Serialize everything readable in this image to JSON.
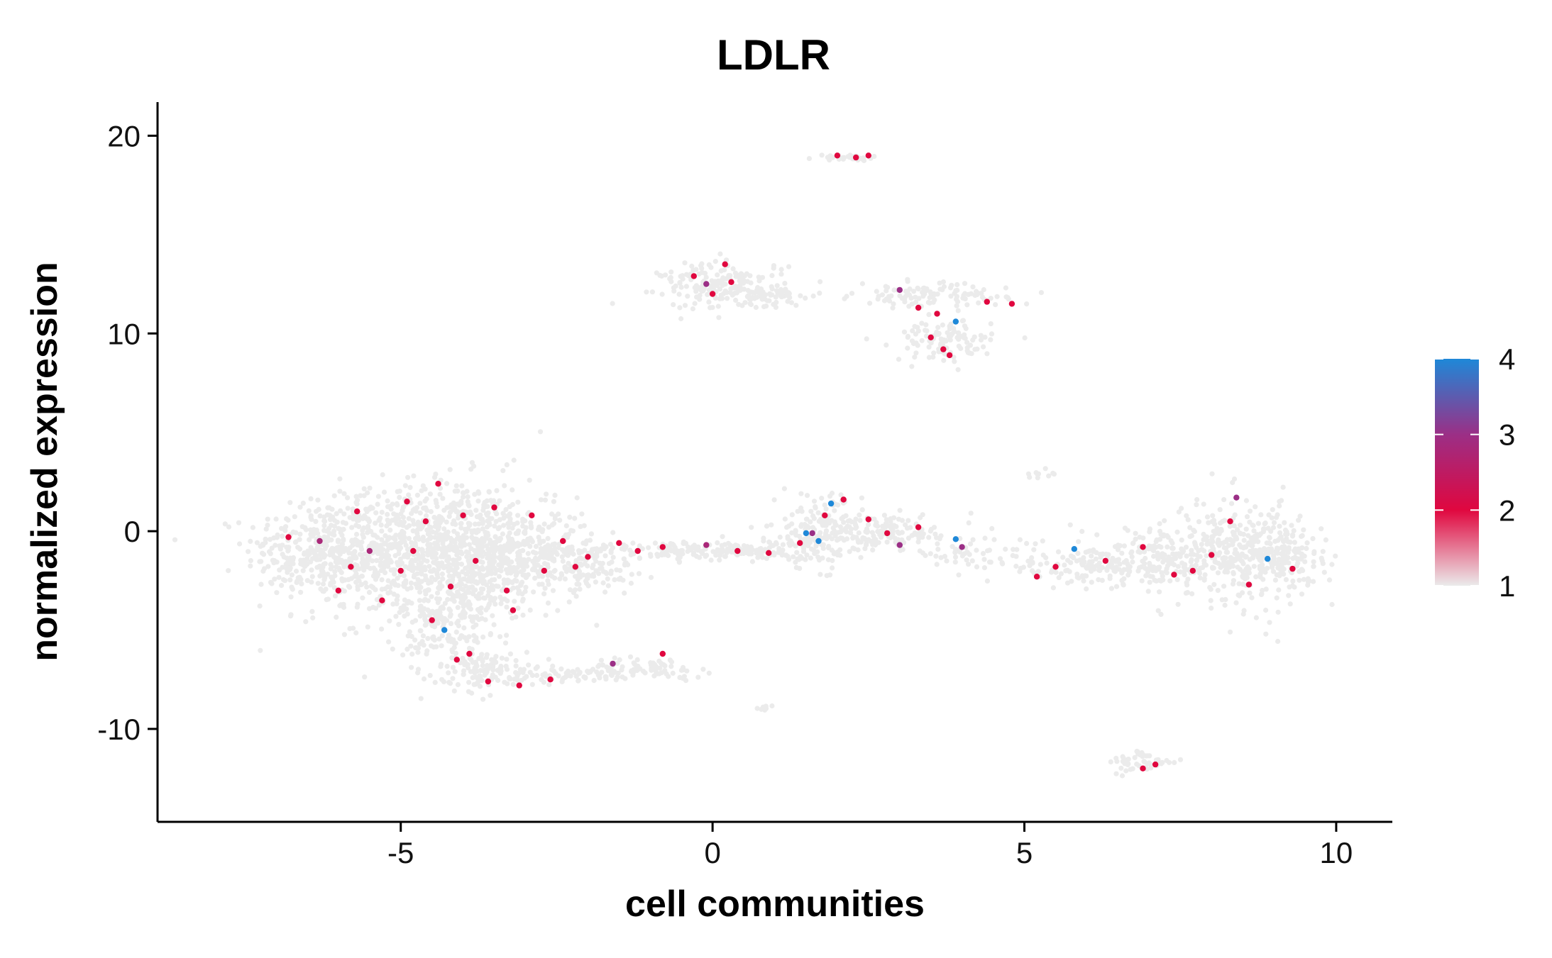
{
  "chart_data": {
    "type": "scatter",
    "title": "LDLR",
    "xlabel": "cell communities",
    "ylabel": "normalized expression",
    "xlim": [
      -8.9,
      10.9
    ],
    "ylim": [
      -14.7,
      21.7
    ],
    "x_ticks": [
      -5,
      0,
      5,
      10
    ],
    "x_tick_labels": [
      "-5",
      "0",
      "5",
      "10"
    ],
    "y_ticks": [
      -10,
      0,
      10,
      20
    ],
    "y_tick_labels": [
      "-10",
      "0",
      "10",
      "20"
    ],
    "grid": false,
    "legend": {
      "position": "right",
      "type": "colorbar",
      "min": 1,
      "max": 4,
      "ticks": [
        1,
        2,
        3,
        4
      ],
      "tick_labels": [
        "1",
        "2",
        "3",
        "4"
      ],
      "color_stops": [
        {
          "value": 1,
          "color": "#ebebeb"
        },
        {
          "value": 2,
          "color": "#e0073f"
        },
        {
          "value": 3,
          "color": "#9b2f86"
        },
        {
          "value": 4,
          "color": "#1e88d8"
        }
      ]
    },
    "background_clusters": [
      {
        "cx": -6.4,
        "cy": -1.0,
        "sx": 0.55,
        "sy": 1.2,
        "n": 260
      },
      {
        "cx": -5.2,
        "cy": -1.2,
        "sx": 0.75,
        "sy": 1.6,
        "n": 520
      },
      {
        "cx": -4.0,
        "cy": -0.8,
        "sx": 0.75,
        "sy": 1.7,
        "n": 620
      },
      {
        "cx": -3.0,
        "cy": -1.3,
        "sx": 0.55,
        "sy": 1.2,
        "n": 300
      },
      {
        "cx": -2.0,
        "cy": -1.9,
        "sx": 0.4,
        "sy": 0.5,
        "n": 90
      },
      {
        "cx": -4.2,
        "cy": -4.8,
        "sx": 0.4,
        "sy": 1.4,
        "n": 180
      },
      {
        "cx": -3.6,
        "cy": -7.0,
        "sx": 0.4,
        "sy": 0.45,
        "n": 110
      },
      {
        "cx": -2.3,
        "cy": -7.3,
        "sx": 0.6,
        "sy": 0.2,
        "n": 70
      },
      {
        "cx": -1.0,
        "cy": -6.9,
        "sx": 0.5,
        "sy": 0.25,
        "n": 70
      },
      {
        "cx": -0.9,
        "cy": -1.0,
        "sx": 0.8,
        "sy": 0.25,
        "n": 110
      },
      {
        "cx": 0.6,
        "cy": -1.0,
        "sx": 0.7,
        "sy": 0.25,
        "n": 110
      },
      {
        "cx": 1.7,
        "cy": 0.0,
        "sx": 0.35,
        "sy": 0.9,
        "n": 170
      },
      {
        "cx": 2.8,
        "cy": -0.1,
        "sx": 0.7,
        "sy": 0.45,
        "n": 140
      },
      {
        "cx": 4.1,
        "cy": -1.2,
        "sx": 0.45,
        "sy": 0.3,
        "n": 40
      },
      {
        "cx": 6.2,
        "cy": -1.8,
        "sx": 0.9,
        "sy": 0.4,
        "n": 170
      },
      {
        "cx": 7.3,
        "cy": -1.3,
        "sx": 0.8,
        "sy": 0.7,
        "n": 190
      },
      {
        "cx": 8.5,
        "cy": -1.0,
        "sx": 0.55,
        "sy": 1.3,
        "n": 330
      },
      {
        "cx": 9.2,
        "cy": -1.4,
        "sx": 0.3,
        "sy": 0.6,
        "n": 110
      },
      {
        "cx": 0.2,
        "cy": 12.4,
        "sx": 0.5,
        "sy": 0.6,
        "n": 190
      },
      {
        "cx": 1.0,
        "cy": 11.9,
        "sx": 0.4,
        "sy": 0.25,
        "n": 40
      },
      {
        "cx": 3.5,
        "cy": 11.9,
        "sx": 0.6,
        "sy": 0.3,
        "n": 110
      },
      {
        "cx": 3.7,
        "cy": 9.6,
        "sx": 0.4,
        "sy": 0.5,
        "n": 110
      },
      {
        "cx": 2.2,
        "cy": 18.9,
        "sx": 0.25,
        "sy": 0.08,
        "n": 40
      },
      {
        "cx": 6.9,
        "cy": -11.7,
        "sx": 0.25,
        "sy": 0.3,
        "n": 50
      },
      {
        "cx": 5.3,
        "cy": 2.8,
        "sx": 0.15,
        "sy": 0.2,
        "n": 10
      },
      {
        "cx": 0.8,
        "cy": -8.9,
        "sx": 0.1,
        "sy": 0.08,
        "n": 8
      }
    ],
    "points": [
      {
        "x": -6.8,
        "y": -0.3,
        "v": 2.0
      },
      {
        "x": -6.3,
        "y": -0.5,
        "v": 2.8
      },
      {
        "x": -5.8,
        "y": -1.8,
        "v": 2.0
      },
      {
        "x": -5.5,
        "y": -1.0,
        "v": 2.8
      },
      {
        "x": -5.3,
        "y": -3.5,
        "v": 2.0
      },
      {
        "x": -5.0,
        "y": -2.0,
        "v": 2.0
      },
      {
        "x": -4.9,
        "y": 1.5,
        "v": 2.0
      },
      {
        "x": -4.6,
        "y": 0.5,
        "v": 2.0
      },
      {
        "x": -4.5,
        "y": -4.5,
        "v": 2.0
      },
      {
        "x": -4.3,
        "y": -5.0,
        "v": 4.0
      },
      {
        "x": -4.2,
        "y": -2.8,
        "v": 2.0
      },
      {
        "x": -4.0,
        "y": 0.8,
        "v": 2.0
      },
      {
        "x": -3.9,
        "y": -6.2,
        "v": 2.0
      },
      {
        "x": -3.6,
        "y": -7.6,
        "v": 2.0
      },
      {
        "x": -3.5,
        "y": 1.2,
        "v": 2.0
      },
      {
        "x": -3.3,
        "y": -3.0,
        "v": 2.0
      },
      {
        "x": -3.1,
        "y": -7.8,
        "v": 2.0
      },
      {
        "x": -2.9,
        "y": 0.8,
        "v": 2.0
      },
      {
        "x": -2.7,
        "y": -2.0,
        "v": 2.0
      },
      {
        "x": -2.2,
        "y": -1.8,
        "v": 2.0
      },
      {
        "x": -2.0,
        "y": -1.3,
        "v": 2.0
      },
      {
        "x": -1.5,
        "y": -0.6,
        "v": 2.0
      },
      {
        "x": -1.2,
        "y": -1.0,
        "v": 2.0
      },
      {
        "x": -0.8,
        "y": -0.8,
        "v": 2.0
      },
      {
        "x": -0.1,
        "y": -0.7,
        "v": 2.8
      },
      {
        "x": 0.4,
        "y": -1.0,
        "v": 2.0
      },
      {
        "x": 0.9,
        "y": -1.1,
        "v": 2.0
      },
      {
        "x": 1.4,
        "y": -0.6,
        "v": 2.0
      },
      {
        "x": 1.6,
        "y": -0.1,
        "v": 3.0
      },
      {
        "x": 1.5,
        "y": -0.1,
        "v": 4.0
      },
      {
        "x": 1.7,
        "y": -0.5,
        "v": 4.0
      },
      {
        "x": 1.8,
        "y": 0.8,
        "v": 2.0
      },
      {
        "x": 1.9,
        "y": 1.4,
        "v": 4.0
      },
      {
        "x": 2.1,
        "y": 1.6,
        "v": 2.0
      },
      {
        "x": 2.5,
        "y": 0.6,
        "v": 2.0
      },
      {
        "x": 2.8,
        "y": -0.1,
        "v": 2.0
      },
      {
        "x": 3.0,
        "y": -0.7,
        "v": 3.0
      },
      {
        "x": 3.3,
        "y": 0.2,
        "v": 2.0
      },
      {
        "x": 3.9,
        "y": -0.4,
        "v": 4.0
      },
      {
        "x": 4.0,
        "y": -0.8,
        "v": 3.0
      },
      {
        "x": -1.6,
        "y": -6.7,
        "v": 3.0
      },
      {
        "x": -0.8,
        "y": -6.2,
        "v": 2.0
      },
      {
        "x": -2.6,
        "y": -7.5,
        "v": 2.0
      },
      {
        "x": 5.2,
        "y": -2.3,
        "v": 2.0
      },
      {
        "x": 5.5,
        "y": -1.8,
        "v": 2.0
      },
      {
        "x": 5.8,
        "y": -0.9,
        "v": 4.0
      },
      {
        "x": 6.3,
        "y": -1.5,
        "v": 2.0
      },
      {
        "x": 6.9,
        "y": -0.8,
        "v": 2.0
      },
      {
        "x": 7.4,
        "y": -2.2,
        "v": 2.0
      },
      {
        "x": 7.7,
        "y": -2.0,
        "v": 2.0
      },
      {
        "x": 8.0,
        "y": -1.2,
        "v": 2.0
      },
      {
        "x": 8.3,
        "y": 0.5,
        "v": 2.0
      },
      {
        "x": 8.4,
        "y": 1.7,
        "v": 3.0
      },
      {
        "x": 8.9,
        "y": -1.4,
        "v": 4.0
      },
      {
        "x": 9.3,
        "y": -1.9,
        "v": 2.0
      },
      {
        "x": 8.6,
        "y": -2.7,
        "v": 2.0
      },
      {
        "x": 0.0,
        "y": 12.0,
        "v": 2.0
      },
      {
        "x": -0.3,
        "y": 12.9,
        "v": 2.0
      },
      {
        "x": 0.2,
        "y": 13.5,
        "v": 2.0
      },
      {
        "x": -0.1,
        "y": 12.5,
        "v": 3.0
      },
      {
        "x": 0.3,
        "y": 12.6,
        "v": 2.0
      },
      {
        "x": 3.0,
        "y": 12.2,
        "v": 3.0
      },
      {
        "x": 3.3,
        "y": 11.3,
        "v": 2.0
      },
      {
        "x": 3.6,
        "y": 11.0,
        "v": 2.0
      },
      {
        "x": 3.9,
        "y": 10.6,
        "v": 4.0
      },
      {
        "x": 4.4,
        "y": 11.6,
        "v": 2.0
      },
      {
        "x": 4.8,
        "y": 11.5,
        "v": 2.0
      },
      {
        "x": 3.5,
        "y": 9.8,
        "v": 2.0
      },
      {
        "x": 3.7,
        "y": 9.2,
        "v": 2.0
      },
      {
        "x": 3.8,
        "y": 8.9,
        "v": 2.0
      },
      {
        "x": 2.0,
        "y": 19.0,
        "v": 2.0
      },
      {
        "x": 2.3,
        "y": 18.9,
        "v": 2.0
      },
      {
        "x": 2.5,
        "y": 19.0,
        "v": 2.0
      },
      {
        "x": 6.9,
        "y": -12.0,
        "v": 2.0
      },
      {
        "x": 7.1,
        "y": -11.8,
        "v": 2.0
      },
      {
        "x": -5.7,
        "y": 1.0,
        "v": 2.0
      },
      {
        "x": -6.0,
        "y": -3.0,
        "v": 2.0
      },
      {
        "x": -4.8,
        "y": -1.0,
        "v": 2.0
      },
      {
        "x": -3.8,
        "y": -1.5,
        "v": 2.0
      },
      {
        "x": -4.4,
        "y": 2.4,
        "v": 2.0
      },
      {
        "x": -3.2,
        "y": -4.0,
        "v": 2.0
      },
      {
        "x": -4.1,
        "y": -6.5,
        "v": 2.0
      },
      {
        "x": -2.4,
        "y": -0.5,
        "v": 2.0
      }
    ]
  }
}
